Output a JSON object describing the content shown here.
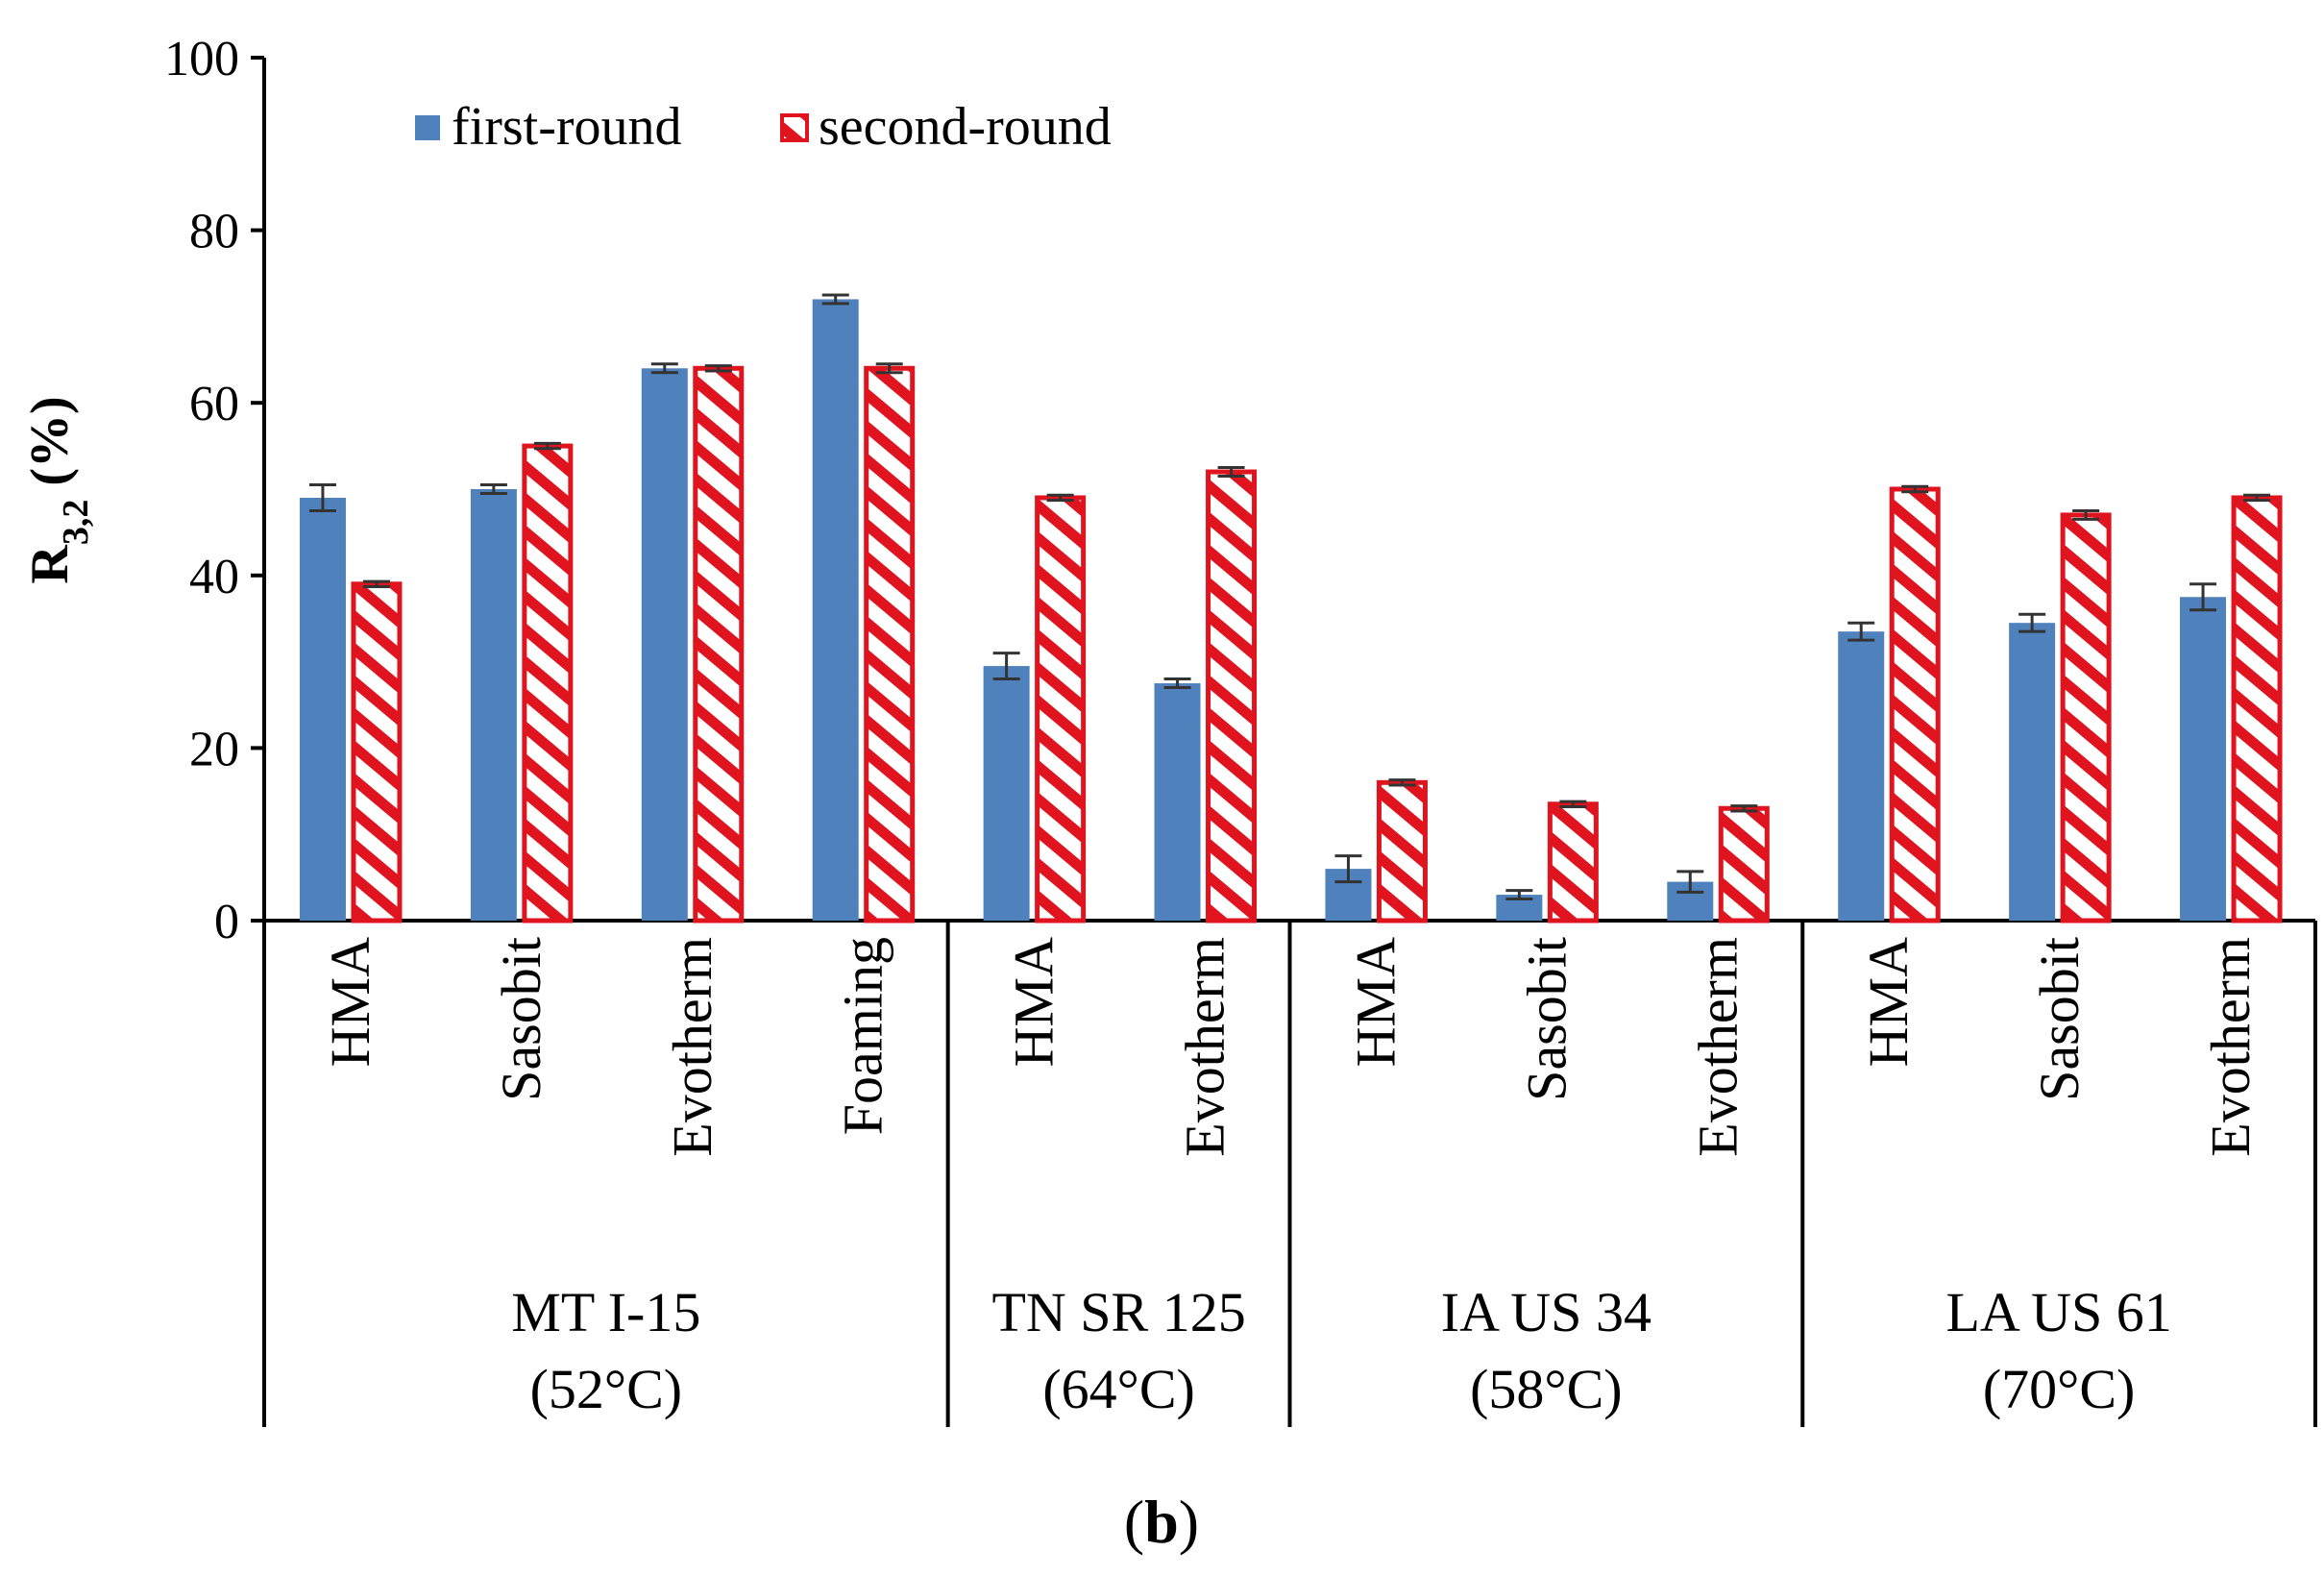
{
  "chart_data": {
    "type": "bar",
    "title": "",
    "ylabel": "R3,2 (%)",
    "ylabel_main": "R",
    "ylabel_sub": "3,2",
    "ylabel_unit": " (%)",
    "ylim": [
      0,
      100
    ],
    "yticks": [
      0,
      20,
      40,
      60,
      80,
      100
    ],
    "legend_position": "top-left",
    "caption_open": "(",
    "caption_letter": "b",
    "caption_close": ")",
    "groups": [
      {
        "label_line1": "MT I-15",
        "label_line2": "(52°C)",
        "size": 4
      },
      {
        "label_line1": "TN SR 125",
        "label_line2": "(64°C)",
        "size": 2
      },
      {
        "label_line1": "IA US 34",
        "label_line2": "(58°C)",
        "size": 3
      },
      {
        "label_line1": "LA US 61",
        "label_line2": "(70°C)",
        "size": 3
      }
    ],
    "categories": [
      "HMA",
      "Sasobit",
      "Evotherm",
      "Foaming",
      "HMA",
      "Evotherm",
      "HMA",
      "Sasobit",
      "Evotherm",
      "HMA",
      "Sasobit",
      "Evotherm"
    ],
    "series": [
      {
        "name": "first-round",
        "color": "#4F81BD",
        "pattern": "solid",
        "values": [
          49,
          50,
          64,
          72,
          29.5,
          27.5,
          6,
          3,
          4.5,
          33.5,
          34.5,
          37.5
        ],
        "errors": [
          1.5,
          0.5,
          0.5,
          0.5,
          1.5,
          0.5,
          1.5,
          0.5,
          1.2,
          1.0,
          1.0,
          1.5
        ]
      },
      {
        "name": "second-round",
        "color": "#E0141E",
        "pattern": "hatched",
        "values": [
          39,
          55,
          64,
          64,
          49,
          52,
          16,
          13.5,
          13,
          50,
          47,
          49
        ],
        "errors": [
          0.3,
          0.3,
          0.3,
          0.5,
          0.3,
          0.5,
          0.3,
          0.3,
          0.3,
          0.3,
          0.5,
          0.3
        ]
      }
    ]
  }
}
